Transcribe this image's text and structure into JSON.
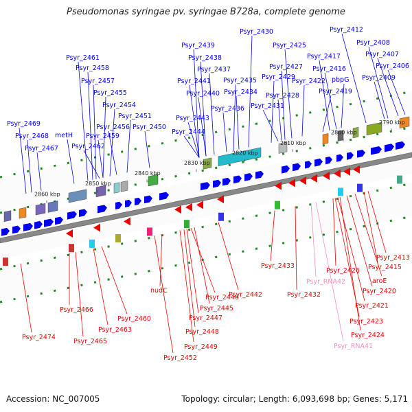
{
  "title": "Pseudomonas syringae pv. syringae B728a, complete genome",
  "footer": {
    "accession": "Accession: NC_007005",
    "info": "Topology: circular; Length: 6,093,698 bp; Genes: 5,171"
  },
  "colors": {
    "forward": "#0000ee",
    "reverse": "#ee0000",
    "rna": "#f090c0",
    "backbone": "#888888",
    "ticks": "#228822"
  },
  "scale_ticks": [
    "2860 kbp",
    "2850 kbp",
    "2840 kbp",
    "2830 kbp",
    "2820 kbp",
    "2810 kbp",
    "2800 kbp",
    "2790 kbp"
  ],
  "forward_labels": [
    "Psyr_2430",
    "Psyr_2412",
    "Psyr_2425",
    "Psyr_2408",
    "Psyr_2407",
    "Psyr_2439",
    "Psyr_2417",
    "Psyr_2461",
    "Psyr_2438",
    "Psyr_2427",
    "Psyr_2416",
    "Psyr_2406",
    "Psyr_2458",
    "Psyr_2437",
    "Psyr_2429",
    "Psyr_2409",
    "Psyr_2457",
    "Psyr_2441",
    "Psyr_2435",
    "Psyr_2422",
    "pbpG",
    "Psyr_2455",
    "Psyr_2440",
    "Psyr_2434",
    "Psyr_2428",
    "Psyr_2419",
    "Psyr_2454",
    "Psyr_2436",
    "Psyr_2431",
    "Psyr_2451",
    "Psyr_2443",
    "Psyr_2469",
    "Psyr_2456",
    "Psyr_2450",
    "Psyr_2468",
    "metH",
    "Psyr_2459",
    "Psyr_2444",
    "Psyr_2467",
    "Psyr_2462"
  ],
  "reverse_labels": [
    "Psyr_2413",
    "Psyr_2433",
    "Psyr_2415",
    "aroE",
    "Psyr_2426",
    "Psyr_2420",
    "Psyr_RNA42",
    "Psyr_2432",
    "Psyr_2442",
    "nudC",
    "Psyr_2446",
    "Psyr_2421",
    "Psyr_2445",
    "Psyr_2466",
    "Psyr_2447",
    "Psyr_2460",
    "Psyr_2423",
    "Psyr_2463",
    "Psyr_2448",
    "Psyr_2424",
    "Psyr_2474",
    "Psyr_2465",
    "Psyr_2449",
    "Psyr_RNA41",
    "Psyr_2452"
  ]
}
